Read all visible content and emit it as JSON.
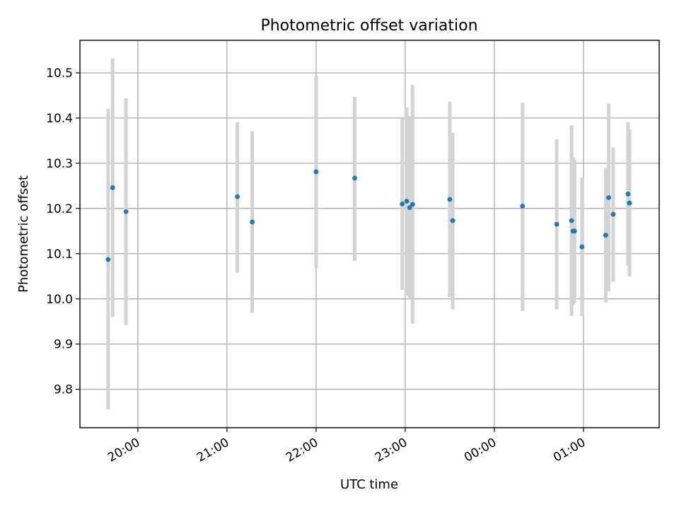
{
  "chart_data": {
    "type": "scatter",
    "title": "Photometric offset variation",
    "xlabel": "UTC time",
    "ylabel": "Photometric offset",
    "x_axis": {
      "kind": "time",
      "min": "19:21",
      "max": "01:51",
      "ticks": [
        {
          "value": "20:00",
          "label": "20:00"
        },
        {
          "value": "21:00",
          "label": "21:00"
        },
        {
          "value": "22:00",
          "label": "22:00"
        },
        {
          "value": "23:00",
          "label": "23:00"
        },
        {
          "value": "00:00",
          "label": "00:00"
        },
        {
          "value": "01:00",
          "label": "01:00"
        }
      ],
      "tick_label_rotation_deg": 30
    },
    "y_axis": {
      "min": 9.715,
      "max": 10.572,
      "ticks": [
        {
          "value": 9.8,
          "label": "9.8"
        },
        {
          "value": 9.9,
          "label": "9.9"
        },
        {
          "value": 10.0,
          "label": "10.0"
        },
        {
          "value": 10.1,
          "label": "10.1"
        },
        {
          "value": 10.2,
          "label": "10.2"
        },
        {
          "value": 10.3,
          "label": "10.3"
        },
        {
          "value": 10.4,
          "label": "10.4"
        },
        {
          "value": 10.5,
          "label": "10.5"
        }
      ]
    },
    "grid": true,
    "colors": {
      "point": "#1f77b4",
      "error_bar": "#d3d3d3",
      "grid": "#b0b0b0",
      "axes": "#000000",
      "background": "#ffffff"
    },
    "series": [
      {
        "points": [
          {
            "time": "19:40",
            "y": 10.087,
            "low": 9.755,
            "high": 10.42
          },
          {
            "time": "19:43",
            "y": 10.246,
            "low": 9.96,
            "high": 10.532
          },
          {
            "time": "19:52",
            "y": 10.193,
            "low": 9.942,
            "high": 10.444
          },
          {
            "time": "21:07",
            "y": 10.226,
            "low": 10.058,
            "high": 10.391
          },
          {
            "time": "21:17",
            "y": 10.17,
            "low": 9.969,
            "high": 10.371
          },
          {
            "time": "22:00",
            "y": 10.281,
            "low": 10.068,
            "high": 10.493
          },
          {
            "time": "22:26",
            "y": 10.267,
            "low": 10.084,
            "high": 10.447
          },
          {
            "time": "22:58",
            "y": 10.21,
            "low": 10.02,
            "high": 10.399
          },
          {
            "time": "23:01",
            "y": 10.216,
            "low": 10.007,
            "high": 10.423
          },
          {
            "time": "23:03",
            "y": 10.202,
            "low": 9.998,
            "high": 10.404
          },
          {
            "time": "23:05",
            "y": 10.209,
            "low": 9.945,
            "high": 10.473
          },
          {
            "time": "23:30",
            "y": 10.22,
            "low": 10.004,
            "high": 10.436
          },
          {
            "time": "23:32",
            "y": 10.173,
            "low": 9.977,
            "high": 10.367
          },
          {
            "time": "00:19",
            "y": 10.205,
            "low": 9.973,
            "high": 10.434
          },
          {
            "time": "00:42",
            "y": 10.165,
            "low": 9.977,
            "high": 10.353
          },
          {
            "time": "00:52",
            "y": 10.173,
            "low": 9.962,
            "high": 10.384
          },
          {
            "time": "00:53",
            "y": 10.15,
            "low": 9.987,
            "high": 10.313
          },
          {
            "time": "00:54",
            "y": 10.15,
            "low": 9.991,
            "high": 10.307
          },
          {
            "time": "00:59",
            "y": 10.115,
            "low": 9.962,
            "high": 10.268
          },
          {
            "time": "01:15",
            "y": 10.141,
            "low": 9.992,
            "high": 10.29
          },
          {
            "time": "01:17",
            "y": 10.224,
            "low": 10.017,
            "high": 10.432
          },
          {
            "time": "01:20",
            "y": 10.187,
            "low": 10.038,
            "high": 10.335
          },
          {
            "time": "01:30",
            "y": 10.232,
            "low": 10.073,
            "high": 10.391
          },
          {
            "time": "01:31",
            "y": 10.212,
            "low": 10.05,
            "high": 10.375
          }
        ]
      }
    ]
  }
}
